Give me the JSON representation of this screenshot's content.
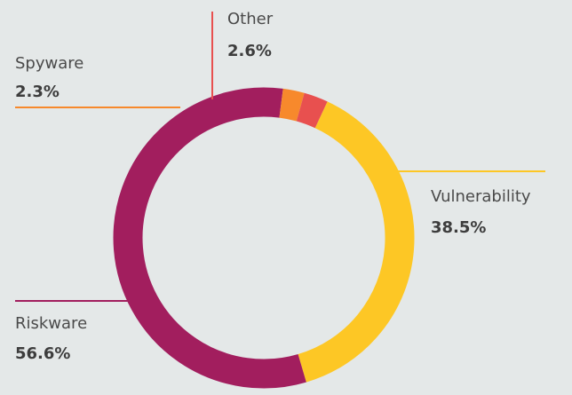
{
  "chart_data": {
    "type": "pie",
    "donut": true,
    "title": "",
    "legend": "none",
    "slices": [
      {
        "label": "Vulnerability",
        "value": 38.5,
        "value_label": "38.5%",
        "color": "#fdc725"
      },
      {
        "label": "Riskware",
        "value": 56.6,
        "value_label": "56.6%",
        "color": "#a21e5e"
      },
      {
        "label": "Spyware",
        "value": 2.3,
        "value_label": "2.3%",
        "color": "#f7892c"
      },
      {
        "label": "Other",
        "value": 2.6,
        "value_label": "2.6%",
        "color": "#e8504f"
      }
    ]
  }
}
